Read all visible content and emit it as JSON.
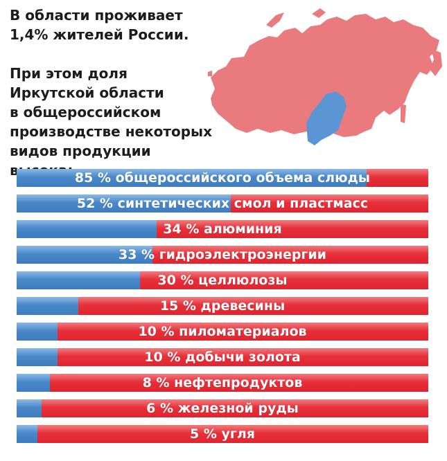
{
  "intro": {
    "line1": "В области проживает",
    "line2": "1,4% жителей России.",
    "detail1": "При этом доля",
    "detail2": "Иркутской области",
    "detail3": "в общероссийском",
    "detail4": "производстве некоторых",
    "detail5": "видов продукции высока:"
  },
  "colors": {
    "region": "#e97b7e",
    "highlight": "#5b95d3",
    "bar_red": "#e6303a",
    "bar_blue": "#4a88c8"
  },
  "chart_data": {
    "type": "bar",
    "orientation": "horizontal",
    "unit": "%",
    "categories": [
      "общероссийского объема слюды",
      "синтетических смол и пластмасс",
      "алюминия",
      "гидроэлектроэнергии",
      "целлюлозы",
      "древесины",
      "пиломатериалов",
      "добычи золота",
      "нефтепродуктов",
      "железной руды",
      "угля"
    ],
    "values": [
      85,
      52,
      34,
      33,
      30,
      15,
      10,
      10,
      8,
      6,
      5
    ],
    "labels": [
      "85 % общероссийского объема слюды",
      "52 % синтетических смол и пластмасс",
      "34 % алюминия",
      "33 % гидроэлектроэнергии",
      "30 % целлюлозы",
      "15 % древесины",
      "10 % пиломатериалов",
      "10 % добычи золота",
      "8 % нефтепродуктов",
      "6 % железной руды",
      "5 % угля"
    ],
    "xlim": [
      0,
      100
    ]
  }
}
